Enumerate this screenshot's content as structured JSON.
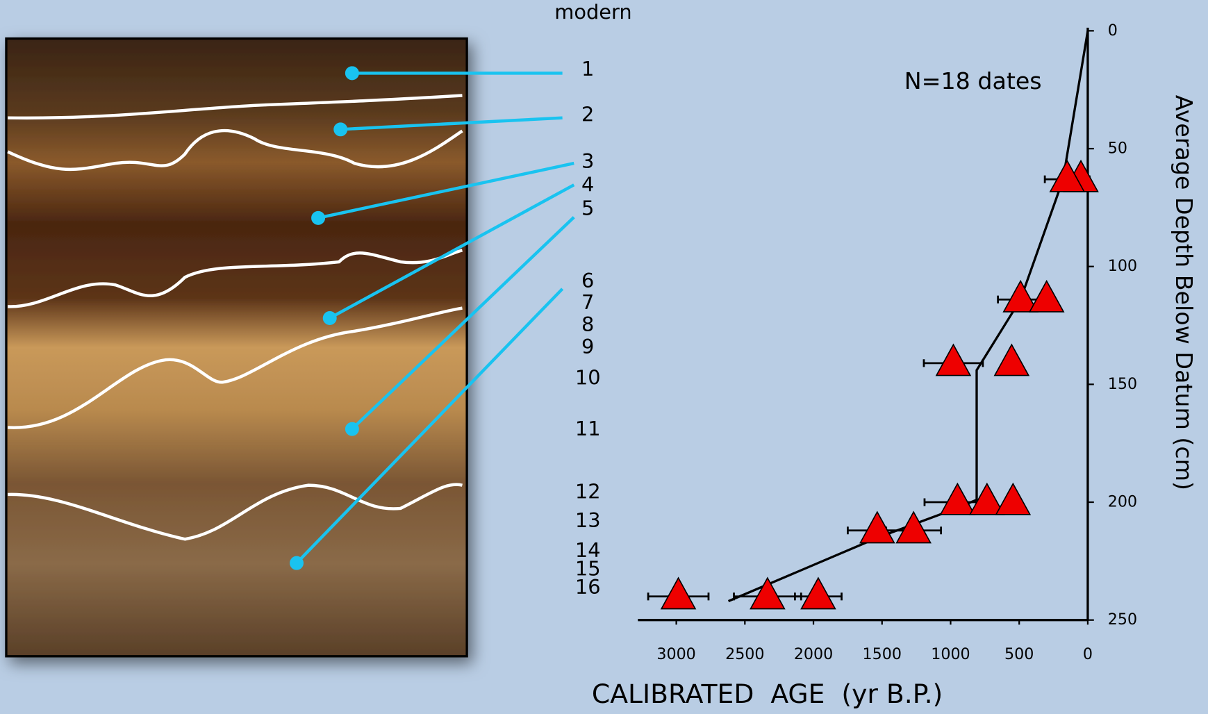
{
  "photo": {
    "labels": [
      "modern",
      "1",
      "2",
      "3",
      "4",
      "5",
      "6",
      "7",
      "8",
      "9",
      "10",
      "11",
      "12",
      "13",
      "14",
      "15",
      "16"
    ]
  },
  "chart_data": {
    "type": "scatter",
    "annotation": "N=18 dates",
    "x_label": "CALIBRATED  AGE  (yr B.P.)",
    "y_label": "Average Depth Below Datum (cm)",
    "xlim": [
      3280,
      0
    ],
    "xticks": [
      3000,
      2500,
      2000,
      1500,
      1000,
      500,
      0
    ],
    "ylim": [
      250,
      0
    ],
    "yticks": [
      0,
      50,
      100,
      150,
      200,
      250
    ],
    "series": [
      {
        "type": "scatter",
        "color": "#ee0000",
        "x": [
          50,
          150,
          490,
          300,
          980,
          555,
          950,
          735,
          545,
          1535,
          1270,
          2985,
          2335,
          1965
        ],
        "y": [
          63,
          63,
          114,
          114,
          141,
          141,
          200,
          200,
          200,
          212,
          212,
          240,
          240,
          240
        ],
        "xerr": [
          null,
          163,
          165,
          null,
          215,
          null,
          240,
          null,
          null,
          215,
          200,
          220,
          245,
          170
        ]
      },
      {
        "type": "line",
        "color": "#000000",
        "x": [
          0,
          180,
          490,
          810,
          810,
          1020,
          1530,
          2620
        ],
        "y": [
          0,
          63,
          114,
          144,
          199,
          204,
          215,
          242
        ]
      }
    ]
  }
}
